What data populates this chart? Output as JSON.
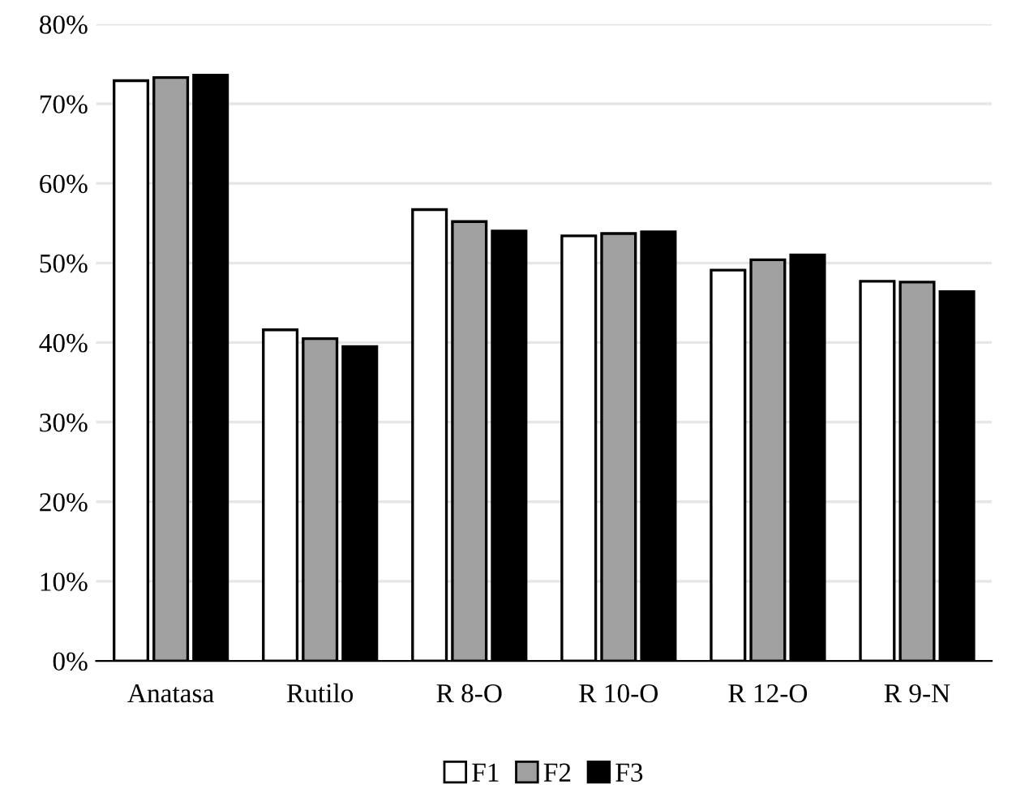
{
  "chart_data": {
    "type": "bar",
    "categories": [
      "Anatasa",
      "Rutilo",
      "R 8-O",
      "R 10-O",
      "R 12-O",
      "R 9-N"
    ],
    "series": [
      {
        "name": "F1",
        "color": "#ffffff",
        "values": [
          72.9,
          41.6,
          56.7,
          53.4,
          49.1,
          47.7
        ]
      },
      {
        "name": "F2",
        "color": "#a0a0a0",
        "values": [
          73.3,
          40.5,
          55.2,
          53.7,
          50.4,
          47.6
        ]
      },
      {
        "name": "F3",
        "color": "#000000",
        "values": [
          73.6,
          39.5,
          54.0,
          53.9,
          51.0,
          46.4
        ]
      }
    ],
    "ylim": [
      0,
      80
    ],
    "yticks": [
      {
        "value": 0,
        "label": "0%"
      },
      {
        "value": 10,
        "label": "10%"
      },
      {
        "value": 20,
        "label": "20%"
      },
      {
        "value": 30,
        "label": "30%"
      },
      {
        "value": 40,
        "label": "40%"
      },
      {
        "value": 50,
        "label": "50%"
      },
      {
        "value": 60,
        "label": "60%"
      },
      {
        "value": 70,
        "label": "70%"
      },
      {
        "value": 80,
        "label": "80%"
      }
    ],
    "grid": "y",
    "legend": "bottom"
  }
}
